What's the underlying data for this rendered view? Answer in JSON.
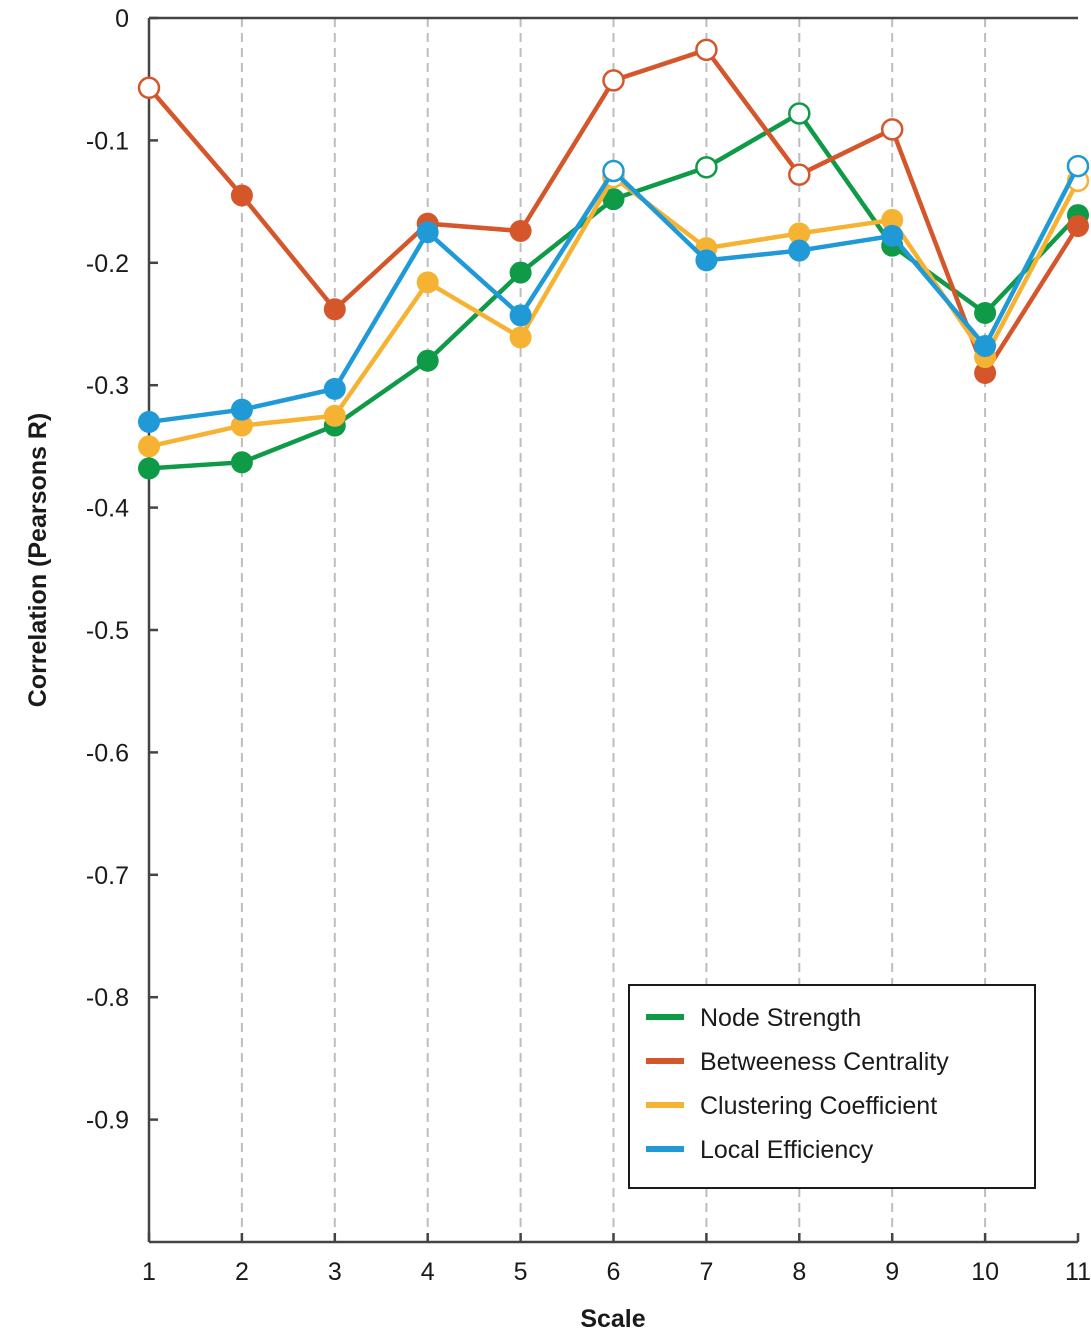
{
  "chart_data": {
    "type": "line",
    "title": "",
    "xlabel": "Scale",
    "ylabel": "Correlation (Pearsons R)",
    "x": [
      1,
      2,
      3,
      4,
      5,
      6,
      7,
      8,
      9,
      10,
      11
    ],
    "xticks": [
      "1",
      "2",
      "3",
      "4",
      "5",
      "6",
      "7",
      "8",
      "9",
      "10",
      "11"
    ],
    "xlim": [
      1,
      11
    ],
    "ylim": [
      -1.0,
      0
    ],
    "yticks": [
      0,
      -0.1,
      -0.2,
      -0.3,
      -0.4,
      -0.5,
      -0.6,
      -0.7,
      -0.8,
      -0.9
    ],
    "ytick_labels": [
      "0",
      "-0.1",
      "-0.2",
      "-0.3",
      "-0.4",
      "-0.5",
      "-0.6",
      "-0.7",
      "-0.8",
      "-0.9"
    ],
    "grid": "vertical dashed",
    "legend_position": "bottom-right",
    "marker_note": "filled circle = significant, open circle = not significant",
    "series": [
      {
        "name": "Node Strength",
        "color": "#0f9a48",
        "values": [
          -0.368,
          -0.363,
          -0.333,
          -0.28,
          -0.208,
          -0.148,
          -0.122,
          -0.078,
          -0.186,
          -0.241,
          -0.161
        ],
        "filled": [
          true,
          true,
          true,
          true,
          true,
          true,
          false,
          false,
          true,
          true,
          true
        ]
      },
      {
        "name": "Betweeness Centrality",
        "color": "#d5562b",
        "values": [
          -0.057,
          -0.145,
          -0.238,
          -0.168,
          -0.174,
          -0.051,
          -0.026,
          -0.128,
          -0.091,
          -0.29,
          -0.17
        ],
        "filled": [
          false,
          true,
          true,
          true,
          true,
          false,
          false,
          false,
          false,
          true,
          true
        ]
      },
      {
        "name": "Clustering Coefficient",
        "color": "#f6b333",
        "values": [
          -0.35,
          -0.333,
          -0.325,
          -0.216,
          -0.261,
          -0.13,
          -0.188,
          -0.176,
          -0.165,
          -0.277,
          -0.133
        ],
        "filled": [
          true,
          true,
          true,
          true,
          true,
          false,
          true,
          true,
          true,
          true,
          false
        ]
      },
      {
        "name": "Local Efficiency",
        "color": "#1f9ad6",
        "values": [
          -0.33,
          -0.32,
          -0.303,
          -0.175,
          -0.243,
          -0.125,
          -0.198,
          -0.19,
          -0.178,
          -0.268,
          -0.121
        ],
        "filled": [
          true,
          true,
          true,
          true,
          true,
          false,
          true,
          true,
          true,
          true,
          false
        ]
      }
    ]
  }
}
